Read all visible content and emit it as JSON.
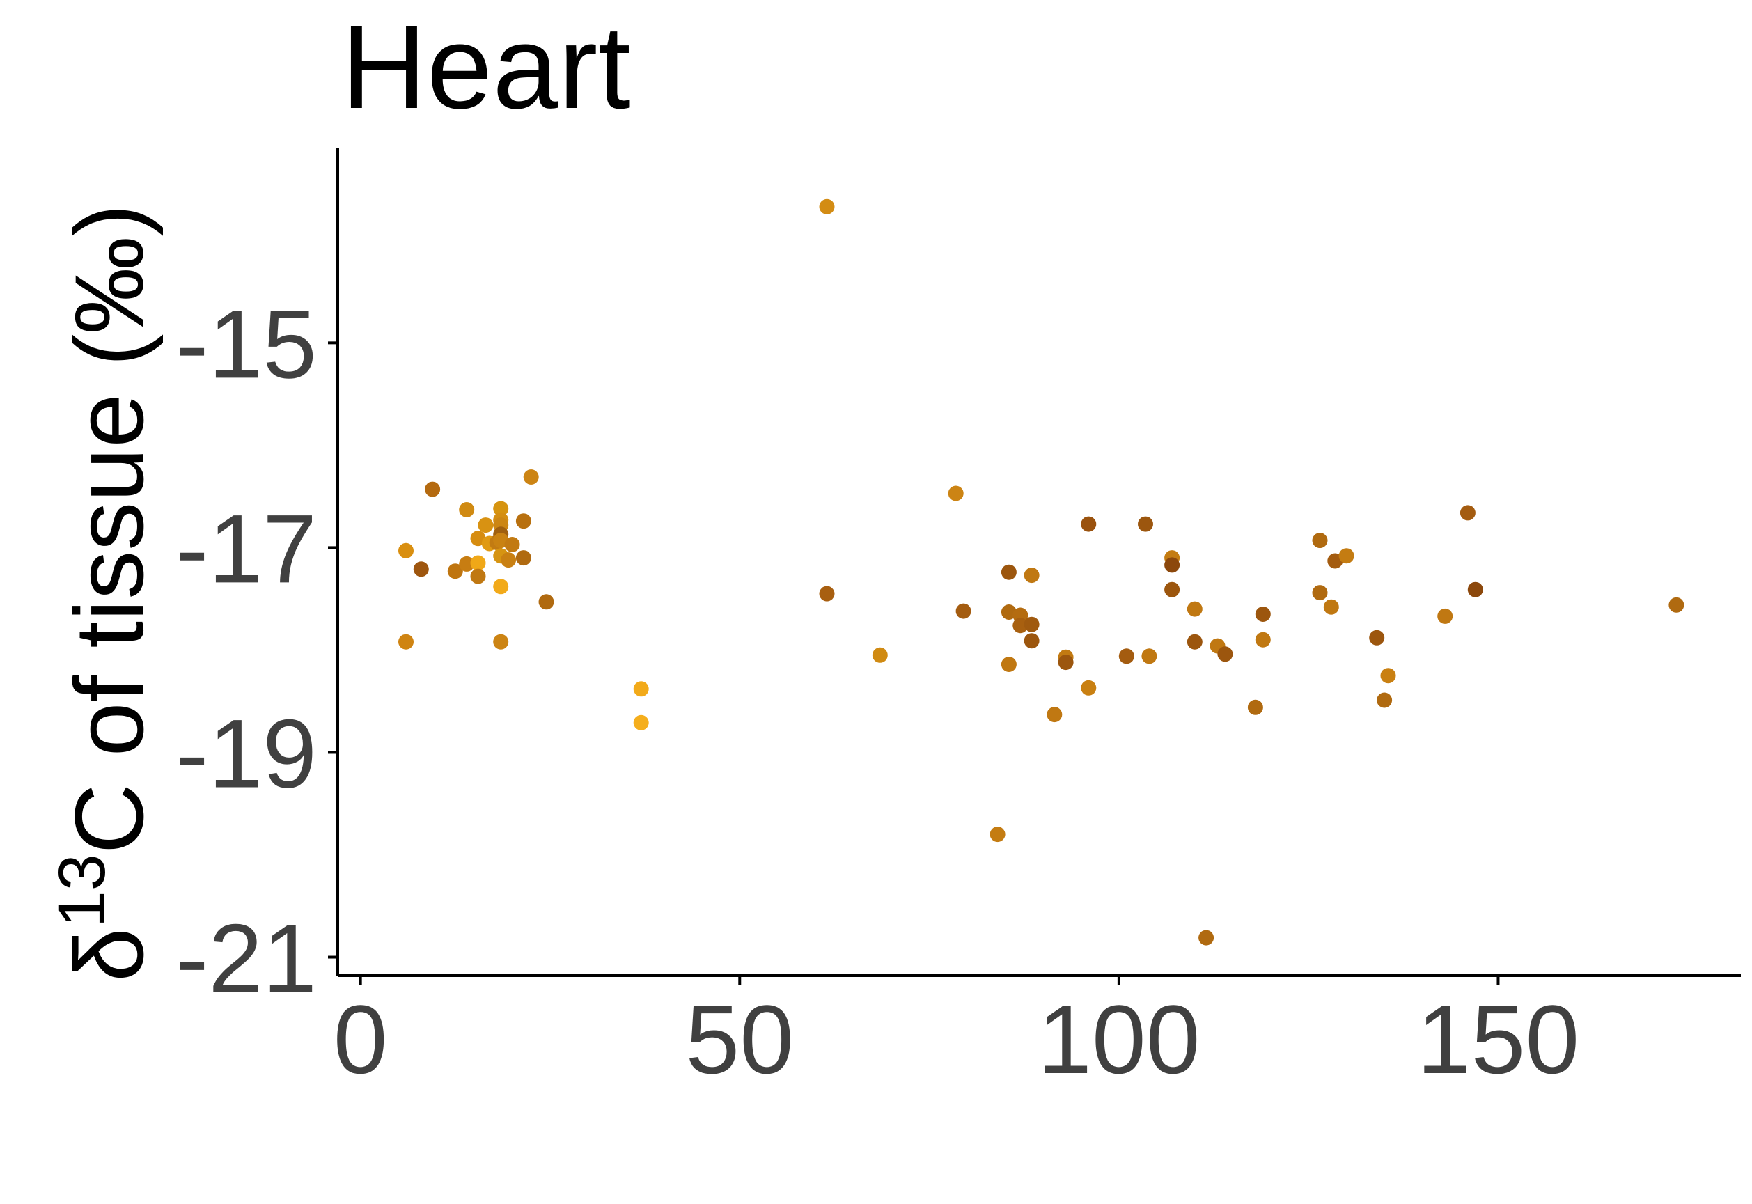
{
  "chart_data": {
    "type": "scatter",
    "title": "Heart",
    "xlabel": "",
    "ylabel": "δ13C of tissue (‰)",
    "ylabel_parts": {
      "prefix": "δ",
      "superscript": "13",
      "suffix": "C of tissue (‰)"
    },
    "xlim": [
      -3,
      182
    ],
    "ylim": [
      -21.18,
      -13.1
    ],
    "xticks": [
      0,
      50,
      100,
      150
    ],
    "xtick_labels": [
      "0",
      "50",
      "100",
      "150"
    ],
    "yticks": [
      -15,
      -17,
      -19,
      -21
    ],
    "ytick_labels": [
      "-15",
      "-17",
      "-19",
      "-21"
    ],
    "grid": false,
    "legend": "none",
    "points": [
      {
        "x": 6,
        "y": -17.03,
        "color": "#d98f10"
      },
      {
        "x": 6,
        "y": -17.92,
        "color": "#cf8412"
      },
      {
        "x": 8,
        "y": -17.21,
        "color": "#9e560f"
      },
      {
        "x": 9.5,
        "y": -16.43,
        "color": "#b46a10"
      },
      {
        "x": 12.5,
        "y": -17.23,
        "color": "#bf7510"
      },
      {
        "x": 14,
        "y": -16.63,
        "color": "#d08a12"
      },
      {
        "x": 14,
        "y": -17.16,
        "color": "#c77d12"
      },
      {
        "x": 15.5,
        "y": -16.91,
        "color": "#d68c10"
      },
      {
        "x": 15.5,
        "y": -17.15,
        "color": "#f0a818"
      },
      {
        "x": 15.5,
        "y": -17.28,
        "color": "#c07812"
      },
      {
        "x": 16.5,
        "y": -16.78,
        "color": "#d89212"
      },
      {
        "x": 17,
        "y": -16.96,
        "color": "#e09a14"
      },
      {
        "x": 18,
        "y": -16.95,
        "color": "#c27b12"
      },
      {
        "x": 18.5,
        "y": -16.62,
        "color": "#d69410"
      },
      {
        "x": 18.5,
        "y": -16.73,
        "color": "#d48e12"
      },
      {
        "x": 18.5,
        "y": -16.78,
        "color": "#cc8614"
      },
      {
        "x": 18.5,
        "y": -16.87,
        "color": "#a0600f"
      },
      {
        "x": 18.5,
        "y": -16.93,
        "color": "#c98212"
      },
      {
        "x": 18.5,
        "y": -17.08,
        "color": "#d69412"
      },
      {
        "x": 18.5,
        "y": -17.38,
        "color": "#f2aa1a"
      },
      {
        "x": 18.5,
        "y": -17.92,
        "color": "#cc8414"
      },
      {
        "x": 19.5,
        "y": -17.12,
        "color": "#c98012"
      },
      {
        "x": 20,
        "y": -16.97,
        "color": "#c27a12"
      },
      {
        "x": 21.5,
        "y": -16.74,
        "color": "#b8700f"
      },
      {
        "x": 21.5,
        "y": -17.1,
        "color": "#b06a10"
      },
      {
        "x": 22.5,
        "y": -16.31,
        "color": "#cc8414"
      },
      {
        "x": 24.5,
        "y": -17.53,
        "color": "#b06a10"
      },
      {
        "x": 37,
        "y": -18.38,
        "color": "#f2aa1a"
      },
      {
        "x": 37,
        "y": -18.71,
        "color": "#f5ae1c"
      },
      {
        "x": 61.5,
        "y": -13.67,
        "color": "#d38c14"
      },
      {
        "x": 61.5,
        "y": -17.45,
        "color": "#a85f10"
      },
      {
        "x": 68.5,
        "y": -18.05,
        "color": "#d08a12"
      },
      {
        "x": 78.5,
        "y": -16.47,
        "color": "#cc8414"
      },
      {
        "x": 79.5,
        "y": -17.62,
        "color": "#a45c10"
      },
      {
        "x": 84,
        "y": -19.8,
        "color": "#c47c12"
      },
      {
        "x": 85.5,
        "y": -17.24,
        "color": "#9c560e"
      },
      {
        "x": 85.5,
        "y": -17.63,
        "color": "#b06a10"
      },
      {
        "x": 85.5,
        "y": -18.14,
        "color": "#c07812"
      },
      {
        "x": 87,
        "y": -17.66,
        "color": "#b46c10"
      },
      {
        "x": 87,
        "y": -17.76,
        "color": "#a86010"
      },
      {
        "x": 88.5,
        "y": -17.27,
        "color": "#c07812"
      },
      {
        "x": 88.5,
        "y": -17.75,
        "color": "#a05a0f"
      },
      {
        "x": 88.5,
        "y": -17.91,
        "color": "#9c560e"
      },
      {
        "x": 91.5,
        "y": -18.63,
        "color": "#c07812"
      },
      {
        "x": 93,
        "y": -18.07,
        "color": "#c27a12"
      },
      {
        "x": 93,
        "y": -18.12,
        "color": "#9c560e"
      },
      {
        "x": 96,
        "y": -16.77,
        "color": "#9a520e"
      },
      {
        "x": 96,
        "y": -18.37,
        "color": "#c98012"
      },
      {
        "x": 101,
        "y": -18.06,
        "color": "#a45c10"
      },
      {
        "x": 103.5,
        "y": -16.77,
        "color": "#9c560e"
      },
      {
        "x": 104,
        "y": -18.06,
        "color": "#c07812"
      },
      {
        "x": 107,
        "y": -17.1,
        "color": "#c47c12"
      },
      {
        "x": 107,
        "y": -17.17,
        "color": "#8c480c"
      },
      {
        "x": 107,
        "y": -17.41,
        "color": "#9c560e"
      },
      {
        "x": 110,
        "y": -17.6,
        "color": "#c07812"
      },
      {
        "x": 110,
        "y": -17.92,
        "color": "#9c560e"
      },
      {
        "x": 111.5,
        "y": -20.81,
        "color": "#b06a10"
      },
      {
        "x": 113,
        "y": -17.96,
        "color": "#c07812"
      },
      {
        "x": 114,
        "y": -18.04,
        "color": "#9c560e"
      },
      {
        "x": 118,
        "y": -18.56,
        "color": "#b06a10"
      },
      {
        "x": 119,
        "y": -17.65,
        "color": "#9c560e"
      },
      {
        "x": 119,
        "y": -17.9,
        "color": "#c07812"
      },
      {
        "x": 126.5,
        "y": -16.93,
        "color": "#b06a10"
      },
      {
        "x": 126.5,
        "y": -17.44,
        "color": "#b06a10"
      },
      {
        "x": 128,
        "y": -17.58,
        "color": "#c07812"
      },
      {
        "x": 128.5,
        "y": -17.13,
        "color": "#a45c10"
      },
      {
        "x": 130,
        "y": -17.08,
        "color": "#c47c12"
      },
      {
        "x": 134,
        "y": -17.88,
        "color": "#9c560e"
      },
      {
        "x": 135,
        "y": -18.49,
        "color": "#b06a10"
      },
      {
        "x": 135.5,
        "y": -18.25,
        "color": "#c98012"
      },
      {
        "x": 143,
        "y": -17.67,
        "color": "#c07812"
      },
      {
        "x": 146,
        "y": -16.66,
        "color": "#a45c10"
      },
      {
        "x": 147,
        "y": -17.41,
        "color": "#8c480c"
      },
      {
        "x": 173.5,
        "y": -17.56,
        "color": "#b06a10"
      }
    ]
  }
}
